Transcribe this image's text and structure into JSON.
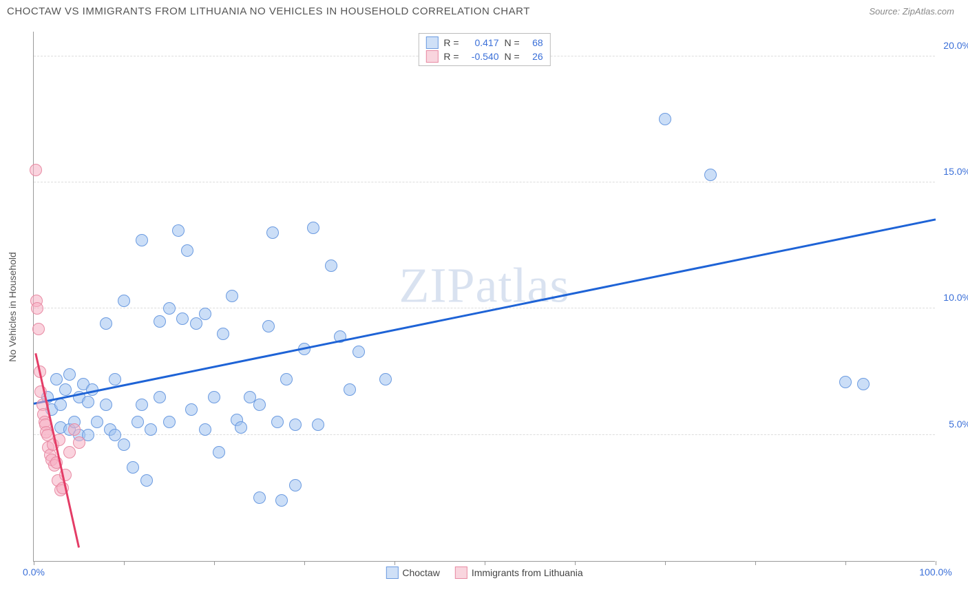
{
  "header": {
    "title": "CHOCTAW VS IMMIGRANTS FROM LITHUANIA NO VEHICLES IN HOUSEHOLD CORRELATION CHART",
    "source_prefix": "Source: ",
    "source": "ZipAtlas.com"
  },
  "chart": {
    "type": "scatter",
    "y_axis_label": "No Vehicles in Household",
    "watermark": "ZIPatlas",
    "background_color": "#ffffff",
    "grid_color": "#dcdcdc",
    "axis_color": "#999999",
    "xlim": [
      0,
      100
    ],
    "ylim": [
      0,
      21
    ],
    "x_ticks": [
      0,
      10,
      20,
      30,
      40,
      50,
      60,
      70,
      80,
      90,
      100
    ],
    "x_tick_labels": {
      "0": "0.0%",
      "100": "100.0%"
    },
    "y_ticks": [
      5,
      10,
      15,
      20
    ],
    "y_tick_labels": {
      "5": "5.0%",
      "10": "10.0%",
      "15": "15.0%",
      "20": "20.0%"
    },
    "stats": [
      {
        "swatch_fill": "#cfe0f7",
        "swatch_border": "#6a9ae0",
        "r_label": "R =",
        "r_value": "0.417",
        "n_label": "N =",
        "n_value": "68"
      },
      {
        "swatch_fill": "#f9d5de",
        "swatch_border": "#e88aa3",
        "r_label": "R =",
        "r_value": "-0.540",
        "n_label": "N =",
        "n_value": "26"
      }
    ],
    "bottom_legend": [
      {
        "swatch_fill": "#cfe0f7",
        "swatch_border": "#6a9ae0",
        "label": "Choctaw"
      },
      {
        "swatch_fill": "#f9d5de",
        "swatch_border": "#e88aa3",
        "label": "Immigrants from Lithuania"
      }
    ],
    "series": [
      {
        "name": "choctaw",
        "point_fill": "rgba(160,195,240,0.55)",
        "point_stroke": "#6a9ae0",
        "point_radius": 9,
        "trend_color": "#1e63d6",
        "trend_width": 2.5,
        "trend": {
          "x1": 0,
          "y1": 6.2,
          "x2": 100,
          "y2": 13.5
        },
        "points": [
          [
            1.5,
            6.5
          ],
          [
            2,
            6.0
          ],
          [
            2.5,
            7.2
          ],
          [
            3,
            6.2
          ],
          [
            3,
            5.3
          ],
          [
            3.5,
            6.8
          ],
          [
            4,
            7.4
          ],
          [
            4,
            5.2
          ],
          [
            4.5,
            5.5
          ],
          [
            5,
            5.0
          ],
          [
            5,
            6.5
          ],
          [
            5.5,
            7.0
          ],
          [
            6,
            5.0
          ],
          [
            6,
            6.3
          ],
          [
            6.5,
            6.8
          ],
          [
            7,
            5.5
          ],
          [
            8,
            9.4
          ],
          [
            8,
            6.2
          ],
          [
            8.5,
            5.2
          ],
          [
            9,
            7.2
          ],
          [
            9,
            5.0
          ],
          [
            10,
            10.3
          ],
          [
            10,
            4.6
          ],
          [
            11,
            3.7
          ],
          [
            11.5,
            5.5
          ],
          [
            12,
            12.7
          ],
          [
            12,
            6.2
          ],
          [
            12.5,
            3.2
          ],
          [
            13,
            5.2
          ],
          [
            14,
            6.5
          ],
          [
            14,
            9.5
          ],
          [
            15,
            10.0
          ],
          [
            15,
            5.5
          ],
          [
            16,
            13.1
          ],
          [
            16.5,
            9.6
          ],
          [
            17,
            12.3
          ],
          [
            17.5,
            6.0
          ],
          [
            18,
            9.4
          ],
          [
            19,
            9.8
          ],
          [
            19,
            5.2
          ],
          [
            20,
            6.5
          ],
          [
            20.5,
            4.3
          ],
          [
            21,
            9.0
          ],
          [
            22,
            10.5
          ],
          [
            22.5,
            5.6
          ],
          [
            23,
            5.3
          ],
          [
            24,
            6.5
          ],
          [
            25,
            6.2
          ],
          [
            25,
            2.5
          ],
          [
            26,
            9.3
          ],
          [
            26.5,
            13.0
          ],
          [
            27,
            5.5
          ],
          [
            27.5,
            2.4
          ],
          [
            28,
            7.2
          ],
          [
            29,
            5.4
          ],
          [
            29,
            3.0
          ],
          [
            30,
            8.4
          ],
          [
            31,
            13.2
          ],
          [
            31.5,
            5.4
          ],
          [
            33,
            11.7
          ],
          [
            34,
            8.9
          ],
          [
            35,
            6.8
          ],
          [
            36,
            8.3
          ],
          [
            39,
            7.2
          ],
          [
            70,
            17.5
          ],
          [
            75,
            15.3
          ],
          [
            90,
            7.1
          ],
          [
            92,
            7.0
          ]
        ]
      },
      {
        "name": "lithuania",
        "point_fill": "rgba(245,175,195,0.55)",
        "point_stroke": "#e88aa3",
        "point_radius": 9,
        "trend_color": "#e43c66",
        "trend_width": 2.5,
        "trend": {
          "x1": 0.2,
          "y1": 8.2,
          "x2": 5,
          "y2": 0.5
        },
        "points": [
          [
            0.2,
            15.5
          ],
          [
            0.3,
            10.3
          ],
          [
            0.4,
            10.0
          ],
          [
            0.5,
            9.2
          ],
          [
            0.7,
            7.5
          ],
          [
            0.8,
            6.7
          ],
          [
            1.0,
            6.2
          ],
          [
            1.1,
            5.8
          ],
          [
            1.2,
            5.5
          ],
          [
            1.3,
            5.4
          ],
          [
            1.4,
            5.1
          ],
          [
            1.5,
            5.0
          ],
          [
            1.6,
            4.5
          ],
          [
            1.8,
            4.2
          ],
          [
            2.0,
            4.0
          ],
          [
            2.1,
            4.6
          ],
          [
            2.3,
            3.8
          ],
          [
            2.5,
            3.9
          ],
          [
            2.7,
            3.2
          ],
          [
            2.8,
            4.8
          ],
          [
            3.0,
            2.8
          ],
          [
            3.2,
            2.9
          ],
          [
            3.5,
            3.4
          ],
          [
            4.0,
            4.3
          ],
          [
            4.5,
            5.2
          ],
          [
            5.0,
            4.7
          ]
        ]
      }
    ]
  }
}
